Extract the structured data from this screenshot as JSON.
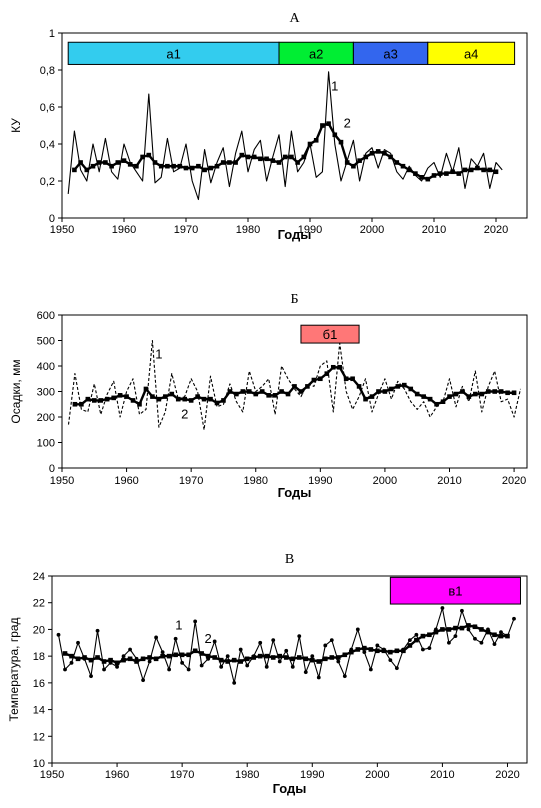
{
  "chart_data": [
    {
      "type": "line",
      "title": "А",
      "xlabel": "Годы",
      "ylabel": "КУ",
      "xlim": [
        1950,
        2025
      ],
      "ylim": [
        0,
        1
      ],
      "xticks": [
        1950,
        1960,
        1970,
        1980,
        1990,
        2000,
        2010,
        2020
      ],
      "yticks": [
        0,
        0.2,
        0.4,
        0.6,
        0.8,
        1
      ],
      "ytick_labels": [
        "0",
        "0,2",
        "0,4",
        "0,6",
        "0,8",
        "1"
      ],
      "bands": [
        {
          "label": "а1",
          "x": [
            1951,
            1985
          ],
          "color": "#33ccee"
        },
        {
          "label": "а2",
          "x": [
            1985,
            1997
          ],
          "color": "#00ee33"
        },
        {
          "label": "а3",
          "x": [
            1997,
            2009
          ],
          "color": "#3366ee"
        },
        {
          "label": "а4",
          "x": [
            2009,
            2023
          ],
          "color": "#ffff00"
        }
      ],
      "band_y": [
        0.83,
        0.95
      ],
      "annotations": [
        {
          "text": "1",
          "x": 1994,
          "y": 0.69
        },
        {
          "text": "2",
          "x": 1996,
          "y": 0.49
        }
      ],
      "series": [
        {
          "x": [
            1951,
            1952,
            1953,
            1954,
            1955,
            1956,
            1957,
            1958,
            1959,
            1960,
            1961,
            1962,
            1963,
            1964,
            1965,
            1966,
            1967,
            1968,
            1969,
            1970,
            1971,
            1972,
            1973,
            1974,
            1975,
            1976,
            1977,
            1978,
            1979,
            1980,
            1981,
            1982,
            1983,
            1984,
            1985,
            1986,
            1987,
            1988,
            1989,
            1990,
            1991,
            1992,
            1993,
            1994,
            1995,
            1996,
            1997,
            1998,
            1999,
            2000,
            2001,
            2002,
            2003,
            2004,
            2005,
            2006,
            2007,
            2008,
            2009,
            2010,
            2011,
            2012,
            2013,
            2014,
            2015,
            2016,
            2017,
            2018,
            2019,
            2020,
            2021
          ],
          "values": [
            0.13,
            0.47,
            0.26,
            0.2,
            0.4,
            0.25,
            0.43,
            0.25,
            0.21,
            0.4,
            0.3,
            0.25,
            0.2,
            0.67,
            0.19,
            0.22,
            0.43,
            0.25,
            0.27,
            0.4,
            0.2,
            0.1,
            0.37,
            0.19,
            0.3,
            0.38,
            0.17,
            0.35,
            0.47,
            0.25,
            0.37,
            0.42,
            0.2,
            0.33,
            0.45,
            0.17,
            0.47,
            0.25,
            0.3,
            0.4,
            0.22,
            0.25,
            0.79,
            0.4,
            0.2,
            0.31,
            0.42,
            0.2,
            0.35,
            0.38,
            0.27,
            0.37,
            0.35,
            0.25,
            0.21,
            0.28,
            0.23,
            0.2,
            0.27,
            0.3,
            0.22,
            0.35,
            0.25,
            0.38,
            0.16,
            0.32,
            0.28,
            0.35,
            0.16,
            0.3,
            0.26
          ],
          "style": "thin"
        },
        {
          "x": [
            1952,
            1953,
            1954,
            1955,
            1956,
            1957,
            1958,
            1959,
            1960,
            1961,
            1962,
            1963,
            1964,
            1965,
            1966,
            1967,
            1968,
            1969,
            1970,
            1971,
            1972,
            1973,
            1974,
            1975,
            1976,
            1977,
            1978,
            1979,
            1980,
            1981,
            1982,
            1983,
            1984,
            1985,
            1986,
            1987,
            1988,
            1989,
            1990,
            1991,
            1992,
            1993,
            1994,
            1995,
            1996,
            1997,
            1998,
            1999,
            2000,
            2001,
            2002,
            2003,
            2004,
            2005,
            2006,
            2007,
            2008,
            2009,
            2010,
            2011,
            2012,
            2013,
            2014,
            2015,
            2016,
            2017,
            2018,
            2019,
            2020
          ],
          "values": [
            0.26,
            0.3,
            0.26,
            0.28,
            0.3,
            0.3,
            0.28,
            0.3,
            0.31,
            0.29,
            0.28,
            0.33,
            0.34,
            0.3,
            0.28,
            0.28,
            0.28,
            0.28,
            0.27,
            0.27,
            0.28,
            0.26,
            0.27,
            0.28,
            0.3,
            0.3,
            0.3,
            0.34,
            0.33,
            0.33,
            0.32,
            0.32,
            0.31,
            0.3,
            0.33,
            0.33,
            0.3,
            0.33,
            0.4,
            0.42,
            0.5,
            0.51,
            0.45,
            0.41,
            0.3,
            0.28,
            0.31,
            0.33,
            0.35,
            0.36,
            0.35,
            0.33,
            0.3,
            0.28,
            0.26,
            0.24,
            0.22,
            0.21,
            0.23,
            0.24,
            0.24,
            0.25,
            0.24,
            0.26,
            0.26,
            0.27,
            0.26,
            0.26,
            0.25
          ],
          "style": "thick"
        }
      ]
    },
    {
      "type": "line",
      "title": "Б",
      "xlabel": "Годы",
      "ylabel": "Осадки, мм",
      "xlim": [
        1950,
        2022
      ],
      "ylim": [
        0,
        600
      ],
      "xticks": [
        1950,
        1960,
        1970,
        1980,
        1990,
        2000,
        2010,
        2020
      ],
      "yticks": [
        0,
        100,
        200,
        300,
        400,
        500,
        600
      ],
      "ytick_labels": [
        "0",
        "100",
        "200",
        "300",
        "400",
        "500",
        "600"
      ],
      "bands": [
        {
          "label": "б1",
          "x": [
            1987,
            1996
          ],
          "color": "#ff7777"
        }
      ],
      "band_y": [
        490,
        560
      ],
      "annotations": [
        {
          "text": "1",
          "x": 1965,
          "y": 430
        },
        {
          "text": "2",
          "x": 1969,
          "y": 195
        }
      ],
      "series": [
        {
          "x": [
            1951,
            1952,
            1953,
            1954,
            1955,
            1956,
            1957,
            1958,
            1959,
            1960,
            1961,
            1962,
            1963,
            1964,
            1965,
            1966,
            1967,
            1968,
            1969,
            1970,
            1971,
            1972,
            1973,
            1974,
            1975,
            1976,
            1977,
            1978,
            1979,
            1980,
            1981,
            1982,
            1983,
            1984,
            1985,
            1986,
            1987,
            1988,
            1989,
            1990,
            1991,
            1992,
            1993,
            1994,
            1995,
            1996,
            1997,
            1998,
            1999,
            2000,
            2001,
            2002,
            2003,
            2004,
            2005,
            2006,
            2007,
            2008,
            2009,
            2010,
            2011,
            2012,
            2013,
            2014,
            2015,
            2016,
            2017,
            2018,
            2019,
            2020,
            2021
          ],
          "values": [
            170,
            370,
            230,
            220,
            330,
            210,
            290,
            340,
            200,
            300,
            350,
            210,
            230,
            500,
            160,
            220,
            370,
            270,
            280,
            350,
            300,
            150,
            360,
            240,
            250,
            330,
            260,
            220,
            380,
            300,
            320,
            350,
            210,
            400,
            350,
            310,
            280,
            330,
            320,
            400,
            420,
            220,
            490,
            300,
            230,
            280,
            350,
            220,
            290,
            350,
            270,
            340,
            310,
            260,
            230,
            260,
            200,
            240,
            260,
            350,
            240,
            320,
            260,
            380,
            220,
            320,
            380,
            260,
            270,
            200,
            310
          ],
          "style": "dashed"
        },
        {
          "x": [
            1952,
            1953,
            1954,
            1955,
            1956,
            1957,
            1958,
            1959,
            1960,
            1961,
            1962,
            1963,
            1964,
            1965,
            1966,
            1967,
            1968,
            1969,
            1970,
            1971,
            1972,
            1973,
            1974,
            1975,
            1976,
            1977,
            1978,
            1979,
            1980,
            1981,
            1982,
            1983,
            1984,
            1985,
            1986,
            1987,
            1988,
            1989,
            1990,
            1991,
            1992,
            1993,
            1994,
            1995,
            1996,
            1997,
            1998,
            1999,
            2000,
            2001,
            2002,
            2003,
            2004,
            2005,
            2006,
            2007,
            2008,
            2009,
            2010,
            2011,
            2012,
            2013,
            2014,
            2015,
            2016,
            2017,
            2018,
            2019,
            2020
          ],
          "values": [
            250,
            250,
            270,
            265,
            265,
            270,
            275,
            285,
            280,
            265,
            250,
            310,
            280,
            270,
            280,
            290,
            270,
            270,
            265,
            280,
            270,
            270,
            255,
            265,
            300,
            290,
            300,
            300,
            290,
            300,
            285,
            285,
            300,
            290,
            320,
            300,
            320,
            345,
            350,
            370,
            395,
            395,
            350,
            350,
            320,
            270,
            280,
            300,
            300,
            310,
            320,
            325,
            310,
            290,
            280,
            270,
            250,
            260,
            280,
            290,
            300,
            280,
            290,
            290,
            300,
            300,
            300,
            295,
            295
          ],
          "style": "thick"
        }
      ]
    },
    {
      "type": "line",
      "title": "В",
      "xlabel": "Годы",
      "ylabel": "Температура, град",
      "xlim": [
        1950,
        2023
      ],
      "ylim": [
        10,
        24
      ],
      "xticks": [
        1950,
        1960,
        1970,
        1980,
        1990,
        2000,
        2010,
        2020
      ],
      "yticks": [
        10,
        12,
        14,
        16,
        18,
        20,
        22,
        24
      ],
      "ytick_labels": [
        "10",
        "12",
        "14",
        "16",
        "18",
        "20",
        "22",
        "24"
      ],
      "bands": [
        {
          "label": "в1",
          "x": [
            2002,
            2022
          ],
          "color": "#ff00ff"
        }
      ],
      "band_y": [
        21.9,
        23.9
      ],
      "annotations": [
        {
          "text": "1",
          "x": 1969.5,
          "y": 20.0
        },
        {
          "text": "2",
          "x": 1974,
          "y": 19.0
        }
      ],
      "series": [
        {
          "x": [
            1951,
            1952,
            1953,
            1954,
            1955,
            1956,
            1957,
            1958,
            1959,
            1960,
            1961,
            1962,
            1963,
            1964,
            1965,
            1966,
            1967,
            1968,
            1969,
            1970,
            1971,
            1972,
            1973,
            1974,
            1975,
            1976,
            1977,
            1978,
            1979,
            1980,
            1981,
            1982,
            1983,
            1984,
            1985,
            1986,
            1987,
            1988,
            1989,
            1990,
            1991,
            1992,
            1993,
            1994,
            1995,
            1996,
            1997,
            1998,
            1999,
            2000,
            2001,
            2002,
            2003,
            2004,
            2005,
            2006,
            2007,
            2008,
            2009,
            2010,
            2011,
            2012,
            2013,
            2014,
            2015,
            2016,
            2017,
            2018,
            2019,
            2020,
            2021
          ],
          "values": [
            19.6,
            17.0,
            17.5,
            19.0,
            17.8,
            16.5,
            19.9,
            17.0,
            17.5,
            17.2,
            18.0,
            18.5,
            17.8,
            16.2,
            17.6,
            19.4,
            18.3,
            17.0,
            19.3,
            17.5,
            17.0,
            20.6,
            17.3,
            17.8,
            19.1,
            17.2,
            18.0,
            16.0,
            18.5,
            17.3,
            18.0,
            19.0,
            17.2,
            19.2,
            17.6,
            18.4,
            17.2,
            19.5,
            16.8,
            18.0,
            16.4,
            18.8,
            19.2,
            17.6,
            16.5,
            18.5,
            20.0,
            18.3,
            17.0,
            18.8,
            18.5,
            17.7,
            17.1,
            18.5,
            19.2,
            19.6,
            18.5,
            18.6,
            20.0,
            21.6,
            19.0,
            19.5,
            21.4,
            20.0,
            19.3,
            19.0,
            20.0,
            18.9,
            19.8,
            19.5,
            20.8
          ],
          "style": "thin-dots"
        },
        {
          "x": [
            1952,
            1953,
            1954,
            1955,
            1956,
            1957,
            1958,
            1959,
            1960,
            1961,
            1962,
            1963,
            1964,
            1965,
            1966,
            1967,
            1968,
            1969,
            1970,
            1971,
            1972,
            1973,
            1974,
            1975,
            1976,
            1977,
            1978,
            1979,
            1980,
            1981,
            1982,
            1983,
            1984,
            1985,
            1986,
            1987,
            1988,
            1989,
            1990,
            1991,
            1992,
            1993,
            1994,
            1995,
            1996,
            1997,
            1998,
            1999,
            2000,
            2001,
            2002,
            2003,
            2004,
            2005,
            2006,
            2007,
            2008,
            2009,
            2010,
            2011,
            2012,
            2013,
            2014,
            2015,
            2016,
            2017,
            2018,
            2019,
            2020
          ],
          "values": [
            18.2,
            18.0,
            17.8,
            17.9,
            17.7,
            17.9,
            17.6,
            17.7,
            17.5,
            17.7,
            17.8,
            17.6,
            17.8,
            17.9,
            17.8,
            18.0,
            18.0,
            18.1,
            18.1,
            18.1,
            18.4,
            18.2,
            18.0,
            17.9,
            17.7,
            17.6,
            17.7,
            17.6,
            17.8,
            17.9,
            18.0,
            18.0,
            17.9,
            18.0,
            17.9,
            17.8,
            17.9,
            17.8,
            17.7,
            17.6,
            17.8,
            17.9,
            17.9,
            18.1,
            18.3,
            18.5,
            18.6,
            18.5,
            18.4,
            18.4,
            18.3,
            18.4,
            18.4,
            18.8,
            19.2,
            19.5,
            19.6,
            19.8,
            20.0,
            20.0,
            20.1,
            20.1,
            20.3,
            20.2,
            20.0,
            19.8,
            19.6,
            19.5,
            19.5
          ],
          "style": "thick"
        }
      ]
    }
  ]
}
